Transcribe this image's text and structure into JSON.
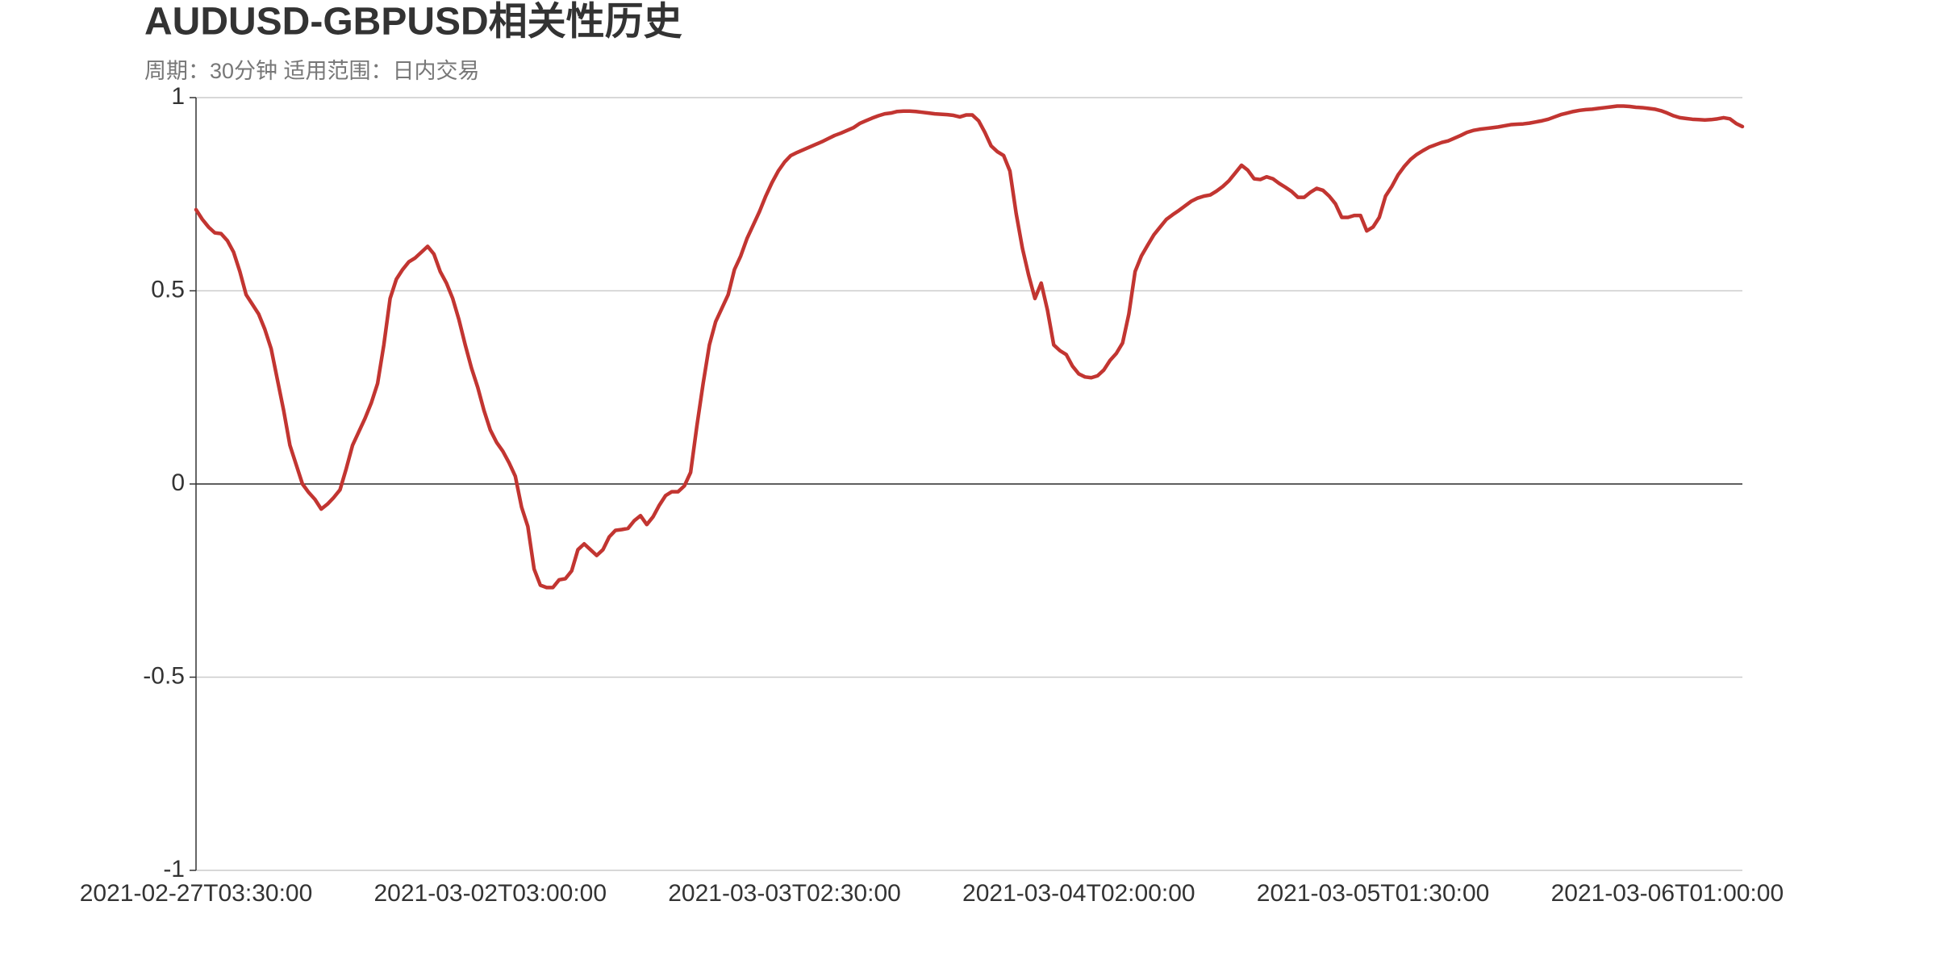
{
  "chart_data": {
    "type": "line",
    "title": "AUDUSD-GBPUSD相关性历史",
    "subtitle": "周期：30分钟 适用范围：日内交易",
    "color": "#c23531",
    "grid": true,
    "ylim": [
      -1,
      1
    ],
    "yticks": [
      -1,
      -0.5,
      0,
      0.5,
      1
    ],
    "categories": [
      "2021-02-27T03:30:00",
      null,
      null,
      null,
      null,
      null,
      null,
      null,
      null,
      null,
      null,
      null,
      null,
      null,
      null,
      null,
      null,
      null,
      null,
      null,
      null,
      null,
      null,
      null,
      null,
      null,
      null,
      null,
      null,
      null,
      null,
      null,
      null,
      null,
      null,
      null,
      null,
      null,
      null,
      null,
      null,
      null,
      null,
      null,
      null,
      null,
      null,
      "2021-03-02T03:00:00",
      null,
      null,
      null,
      null,
      null,
      null,
      null,
      null,
      null,
      null,
      null,
      null,
      null,
      null,
      null,
      null,
      null,
      null,
      null,
      null,
      null,
      null,
      null,
      null,
      null,
      null,
      null,
      null,
      null,
      null,
      null,
      null,
      null,
      null,
      null,
      null,
      null,
      null,
      null,
      null,
      null,
      null,
      null,
      null,
      null,
      null,
      "2021-03-03T02:30:00",
      null,
      null,
      null,
      null,
      null,
      null,
      null,
      null,
      null,
      null,
      null,
      null,
      null,
      null,
      null,
      null,
      null,
      null,
      null,
      null,
      null,
      null,
      null,
      null,
      null,
      null,
      null,
      null,
      null,
      null,
      null,
      null,
      null,
      null,
      null,
      null,
      null,
      null,
      null,
      null,
      null,
      null,
      null,
      null,
      null,
      null,
      "2021-03-04T02:00:00",
      null,
      null,
      null,
      null,
      null,
      null,
      null,
      null,
      null,
      null,
      null,
      null,
      null,
      null,
      null,
      null,
      null,
      null,
      null,
      null,
      null,
      null,
      null,
      null,
      null,
      null,
      null,
      null,
      null,
      null,
      null,
      null,
      null,
      null,
      null,
      null,
      null,
      null,
      null,
      null,
      null,
      null,
      null,
      null,
      null,
      null,
      "2021-03-05T01:30:00",
      null,
      null,
      null,
      null,
      null,
      null,
      null,
      null,
      null,
      null,
      null,
      null,
      null,
      null,
      null,
      null,
      null,
      null,
      null,
      null,
      null,
      null,
      null,
      null,
      null,
      null,
      null,
      null,
      null,
      null,
      null,
      null,
      null,
      null,
      null,
      null,
      null,
      null,
      null,
      null,
      null,
      null,
      null,
      null,
      null,
      null,
      "2021-03-06T01:00:00",
      null,
      null,
      null,
      null,
      null,
      null,
      null,
      null,
      null,
      null,
      null,
      null
    ],
    "values": [
      0.71,
      0.685,
      0.665,
      0.65,
      0.648,
      0.63,
      0.6,
      0.55,
      0.49,
      0.465,
      0.44,
      0.4,
      0.35,
      0.27,
      0.19,
      0.1,
      0.05,
      0.0,
      -0.022,
      -0.04,
      -0.065,
      -0.052,
      -0.035,
      -0.015,
      0.04,
      0.1,
      0.135,
      0.17,
      0.21,
      0.26,
      0.36,
      0.48,
      0.53,
      0.555,
      0.575,
      0.585,
      0.6,
      0.615,
      0.595,
      0.55,
      0.52,
      0.48,
      0.425,
      0.36,
      0.3,
      0.25,
      0.19,
      0.14,
      0.108,
      0.085,
      0.055,
      0.02,
      -0.06,
      -0.11,
      -0.22,
      -0.262,
      -0.268,
      -0.268,
      -0.248,
      -0.245,
      -0.225,
      -0.17,
      -0.155,
      -0.17,
      -0.185,
      -0.17,
      -0.137,
      -0.12,
      -0.118,
      -0.115,
      -0.095,
      -0.082,
      -0.105,
      -0.085,
      -0.055,
      -0.03,
      -0.02,
      -0.02,
      -0.005,
      0.03,
      0.15,
      0.26,
      0.36,
      0.42,
      0.455,
      0.49,
      0.555,
      0.59,
      0.635,
      0.67,
      0.705,
      0.745,
      0.78,
      0.81,
      0.833,
      0.85,
      0.858,
      0.865,
      0.872,
      0.879,
      0.886,
      0.894,
      0.902,
      0.908,
      0.915,
      0.922,
      0.933,
      0.94,
      0.947,
      0.953,
      0.958,
      0.96,
      0.964,
      0.965,
      0.965,
      0.964,
      0.962,
      0.96,
      0.958,
      0.957,
      0.956,
      0.954,
      0.95,
      0.955,
      0.955,
      0.94,
      0.91,
      0.875,
      0.86,
      0.85,
      0.81,
      0.7,
      0.61,
      0.54,
      0.48,
      0.52,
      0.45,
      0.36,
      0.345,
      0.335,
      0.305,
      0.285,
      0.277,
      0.275,
      0.28,
      0.295,
      0.32,
      0.338,
      0.365,
      0.44,
      0.55,
      0.59,
      0.618,
      0.645,
      0.665,
      0.685,
      0.697,
      0.708,
      0.72,
      0.732,
      0.74,
      0.745,
      0.748,
      0.758,
      0.77,
      0.785,
      0.805,
      0.825,
      0.812,
      0.79,
      0.788,
      0.795,
      0.79,
      0.778,
      0.768,
      0.757,
      0.742,
      0.742,
      0.755,
      0.765,
      0.76,
      0.745,
      0.725,
      0.69,
      0.69,
      0.695,
      0.695,
      0.655,
      0.665,
      0.69,
      0.745,
      0.77,
      0.8,
      0.822,
      0.84,
      0.853,
      0.863,
      0.872,
      0.878,
      0.884,
      0.888,
      0.895,
      0.902,
      0.91,
      0.915,
      0.918,
      0.92,
      0.922,
      0.924,
      0.927,
      0.93,
      0.931,
      0.932,
      0.934,
      0.937,
      0.94,
      0.944,
      0.95,
      0.956,
      0.96,
      0.964,
      0.967,
      0.969,
      0.97,
      0.972,
      0.974,
      0.976,
      0.978,
      0.978,
      0.977,
      0.975,
      0.974,
      0.972,
      0.97,
      0.966,
      0.96,
      0.953,
      0.948,
      0.946,
      0.944,
      0.943,
      0.942,
      0.943,
      0.945,
      0.948,
      0.945,
      0.933,
      0.925
    ]
  }
}
